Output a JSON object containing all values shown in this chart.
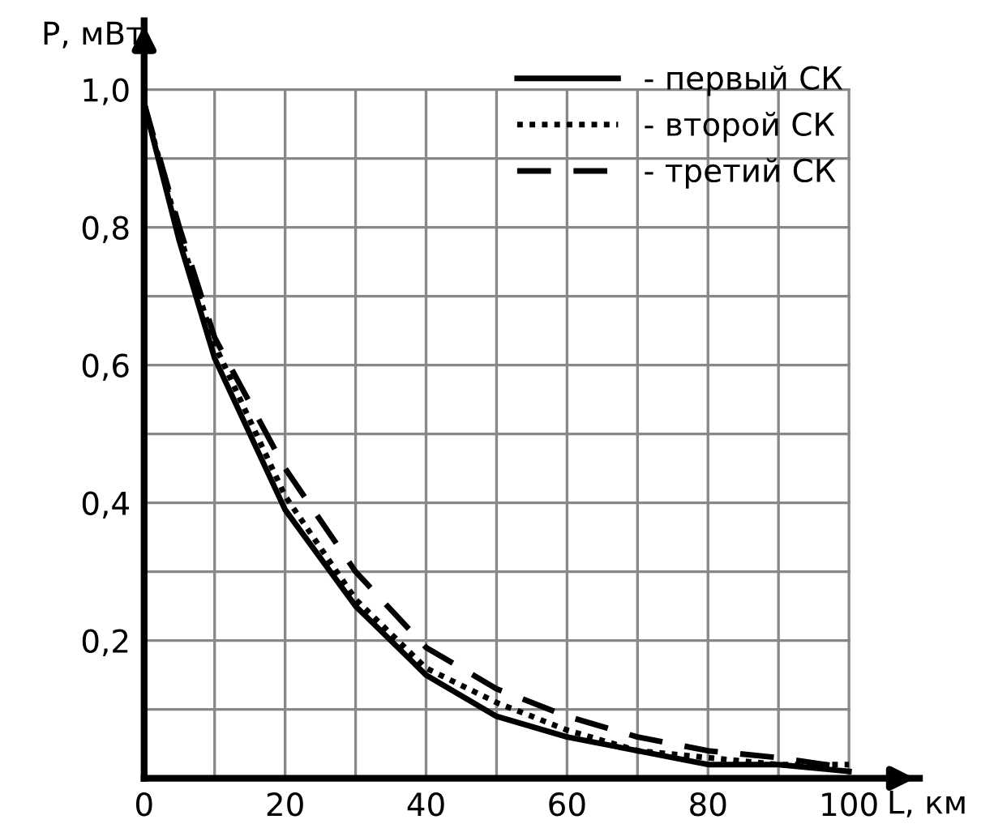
{
  "chart_data": {
    "type": "line",
    "xlabel": "L, км",
    "ylabel": "P, мВт",
    "x": [
      0,
      5,
      10,
      20,
      30,
      40,
      50,
      60,
      70,
      80,
      90,
      100
    ],
    "series": [
      {
        "name": "- первый СК",
        "color": "#000000",
        "line_style": "solid",
        "values": [
          0.98,
          0.78,
          0.61,
          0.39,
          0.25,
          0.15,
          0.09,
          0.06,
          0.04,
          0.02,
          0.02,
          0.01
        ]
      },
      {
        "name": "- второй СК",
        "color": "#000000",
        "line_style": "dotted",
        "values": [
          0.98,
          0.79,
          0.63,
          0.41,
          0.26,
          0.16,
          0.11,
          0.07,
          0.04,
          0.03,
          0.02,
          0.02
        ]
      },
      {
        "name": "- третий СК",
        "color": "#000000",
        "line_style": "dashed",
        "values": [
          0.98,
          0.8,
          0.64,
          0.45,
          0.3,
          0.19,
          0.13,
          0.09,
          0.06,
          0.04,
          0.03,
          0.015
        ]
      }
    ],
    "xlim": [
      0,
      110
    ],
    "ylim": [
      0,
      1.1
    ],
    "xticks": [
      0,
      {
        "value": 10,
        "label": null
      },
      20,
      {
        "value": 30,
        "label": null
      },
      40,
      {
        "value": 50,
        "label": null
      },
      60,
      {
        "value": 70,
        "label": null
      },
      80,
      {
        "value": 90,
        "label": null
      },
      100
    ],
    "yticks": [
      {
        "value": 0.1,
        "label": null
      },
      {
        "value": 0.2,
        "label": "0,2"
      },
      {
        "value": 0.3,
        "label": null
      },
      {
        "value": 0.4,
        "label": "0,4"
      },
      {
        "value": 0.5,
        "label": null
      },
      {
        "value": 0.6,
        "label": "0,6"
      },
      {
        "value": 0.7,
        "label": null
      },
      {
        "value": 0.8,
        "label": "0,8"
      },
      {
        "value": 0.9,
        "label": null
      },
      {
        "value": 1.0,
        "label": "1,0"
      }
    ],
    "grid": true,
    "legend": "top right",
    "marker": "none"
  }
}
